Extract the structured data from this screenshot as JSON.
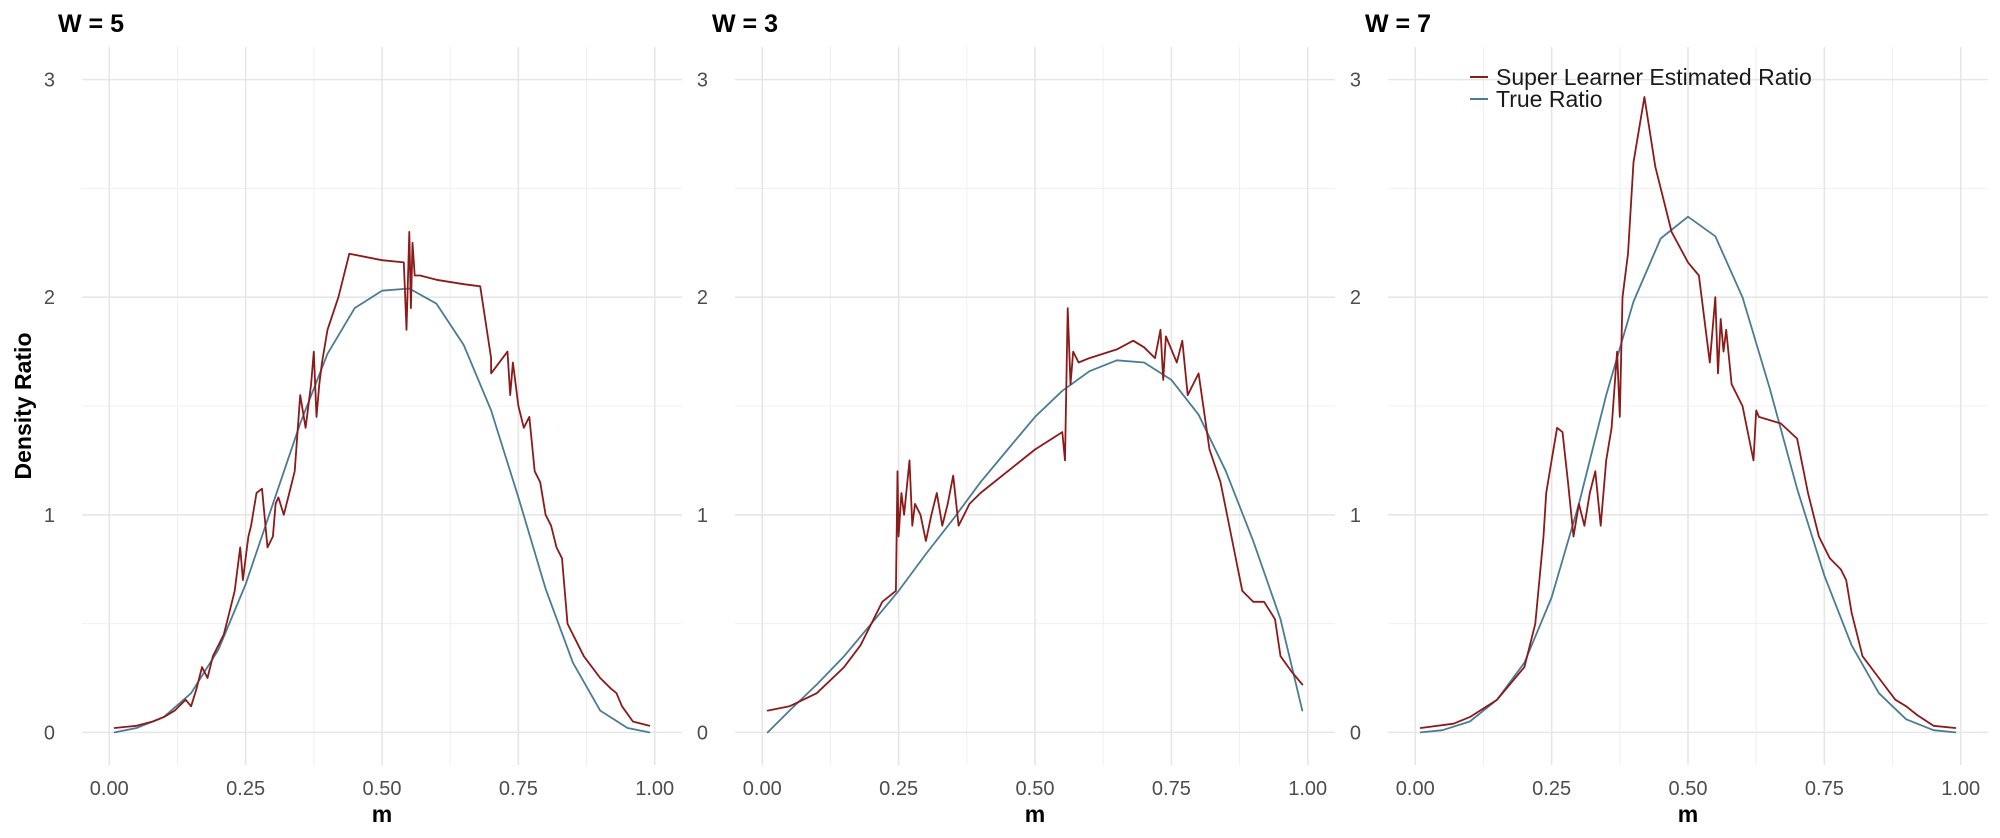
{
  "chart_data": [
    {
      "type": "line",
      "title": "W = 5",
      "xlabel": "m",
      "ylabel": "Density Ratio",
      "xlim": [
        0,
        1
      ],
      "ylim": [
        -0.1,
        3.15
      ],
      "x_ticks": [
        "0.00",
        "0.25",
        "0.50",
        "0.75",
        "1.00"
      ],
      "y_ticks": [
        "0",
        "1",
        "2",
        "3"
      ],
      "grid": true,
      "series": [
        {
          "name": "Super Learner Estimated Ratio",
          "color": "#8b1a1a",
          "x": [
            0.01,
            0.05,
            0.08,
            0.1,
            0.12,
            0.14,
            0.15,
            0.16,
            0.17,
            0.18,
            0.19,
            0.2,
            0.21,
            0.22,
            0.23,
            0.24,
            0.245,
            0.25,
            0.255,
            0.26,
            0.27,
            0.28,
            0.29,
            0.3,
            0.305,
            0.31,
            0.32,
            0.33,
            0.34,
            0.35,
            0.36,
            0.37,
            0.375,
            0.38,
            0.385,
            0.39,
            0.4,
            0.42,
            0.44,
            0.5,
            0.54,
            0.545,
            0.55,
            0.553,
            0.556,
            0.56,
            0.57,
            0.6,
            0.65,
            0.68,
            0.7,
            0.7001,
            0.73,
            0.735,
            0.74,
            0.75,
            0.76,
            0.77,
            0.78,
            0.79,
            0.8,
            0.81,
            0.82,
            0.83,
            0.84,
            0.85,
            0.87,
            0.9,
            0.92,
            0.93,
            0.94,
            0.96,
            0.99
          ],
          "y": [
            0.02,
            0.03,
            0.05,
            0.07,
            0.1,
            0.15,
            0.12,
            0.2,
            0.3,
            0.25,
            0.35,
            0.4,
            0.45,
            0.55,
            0.65,
            0.85,
            0.7,
            0.8,
            0.9,
            0.95,
            1.1,
            1.12,
            0.85,
            0.9,
            1.05,
            1.08,
            1.0,
            1.1,
            1.2,
            1.55,
            1.4,
            1.6,
            1.75,
            1.45,
            1.6,
            1.7,
            1.85,
            2.0,
            2.2,
            2.17,
            2.16,
            1.85,
            2.3,
            1.95,
            2.25,
            2.1,
            2.1,
            2.08,
            2.06,
            2.05,
            1.72,
            1.65,
            1.75,
            1.55,
            1.7,
            1.5,
            1.4,
            1.45,
            1.2,
            1.15,
            1.0,
            0.95,
            0.85,
            0.8,
            0.5,
            0.45,
            0.35,
            0.25,
            0.2,
            0.18,
            0.12,
            0.05,
            0.03
          ]
        },
        {
          "name": "True Ratio",
          "color": "#4a7c96",
          "x": [
            0.01,
            0.05,
            0.1,
            0.15,
            0.2,
            0.25,
            0.3,
            0.35,
            0.4,
            0.45,
            0.5,
            0.55,
            0.6,
            0.65,
            0.7,
            0.75,
            0.8,
            0.85,
            0.9,
            0.95,
            0.99
          ],
          "y": [
            0.0,
            0.02,
            0.07,
            0.18,
            0.38,
            0.68,
            1.05,
            1.42,
            1.74,
            1.95,
            2.03,
            2.04,
            1.97,
            1.78,
            1.48,
            1.08,
            0.66,
            0.32,
            0.1,
            0.02,
            0.0
          ]
        }
      ]
    },
    {
      "type": "line",
      "title": "W = 3",
      "xlabel": "m",
      "xlim": [
        0,
        1
      ],
      "ylim": [
        -0.1,
        3.15
      ],
      "x_ticks": [
        "0.00",
        "0.25",
        "0.50",
        "0.75",
        "1.00"
      ],
      "y_ticks": [
        "0",
        "1",
        "2",
        "3"
      ],
      "grid": true,
      "series": [
        {
          "name": "Super Learner Estimated Ratio",
          "color": "#8b1a1a",
          "x": [
            0.01,
            0.05,
            0.1,
            0.15,
            0.18,
            0.2,
            0.22,
            0.245,
            0.248,
            0.25,
            0.255,
            0.26,
            0.27,
            0.275,
            0.28,
            0.29,
            0.3,
            0.31,
            0.32,
            0.33,
            0.34,
            0.35,
            0.36,
            0.37,
            0.38,
            0.4,
            0.45,
            0.5,
            0.55,
            0.555,
            0.56,
            0.565,
            0.57,
            0.58,
            0.6,
            0.65,
            0.68,
            0.7,
            0.72,
            0.73,
            0.735,
            0.74,
            0.76,
            0.77,
            0.78,
            0.8,
            0.82,
            0.84,
            0.86,
            0.88,
            0.9,
            0.92,
            0.94,
            0.95,
            0.97,
            0.99
          ],
          "y": [
            0.1,
            0.12,
            0.18,
            0.3,
            0.4,
            0.5,
            0.6,
            0.65,
            1.2,
            0.9,
            1.1,
            1.0,
            1.25,
            0.95,
            1.05,
            1.0,
            0.88,
            1.0,
            1.1,
            0.95,
            1.05,
            1.18,
            0.95,
            1.0,
            1.05,
            1.1,
            1.2,
            1.3,
            1.38,
            1.25,
            1.95,
            1.6,
            1.75,
            1.7,
            1.72,
            1.76,
            1.8,
            1.77,
            1.72,
            1.85,
            1.62,
            1.82,
            1.7,
            1.8,
            1.55,
            1.65,
            1.3,
            1.15,
            0.9,
            0.65,
            0.6,
            0.6,
            0.52,
            0.35,
            0.28,
            0.22
          ]
        },
        {
          "name": "True Ratio",
          "color": "#4a7c96",
          "x": [
            0.01,
            0.05,
            0.1,
            0.15,
            0.2,
            0.25,
            0.3,
            0.35,
            0.4,
            0.45,
            0.5,
            0.55,
            0.6,
            0.65,
            0.7,
            0.75,
            0.8,
            0.85,
            0.9,
            0.95,
            0.99
          ],
          "y": [
            0.0,
            0.1,
            0.22,
            0.35,
            0.5,
            0.65,
            0.82,
            0.98,
            1.15,
            1.3,
            1.45,
            1.57,
            1.66,
            1.71,
            1.7,
            1.62,
            1.46,
            1.2,
            0.88,
            0.52,
            0.1
          ]
        }
      ]
    },
    {
      "type": "line",
      "title": "W = 7",
      "xlabel": "m",
      "xlim": [
        0,
        1
      ],
      "ylim": [
        -0.1,
        3.15
      ],
      "x_ticks": [
        "0.00",
        "0.25",
        "0.50",
        "0.75",
        "1.00"
      ],
      "y_ticks": [
        "0",
        "1",
        "2",
        "3"
      ],
      "grid": true,
      "legend": {
        "position": "top-right",
        "entries": [
          "Super Learner Estimated Ratio",
          "True Ratio"
        ]
      },
      "series": [
        {
          "name": "Super Learner Estimated Ratio",
          "color": "#8b1a1a",
          "x": [
            0.01,
            0.07,
            0.1,
            0.15,
            0.2,
            0.22,
            0.235,
            0.24,
            0.25,
            0.26,
            0.27,
            0.28,
            0.29,
            0.3,
            0.31,
            0.32,
            0.33,
            0.34,
            0.35,
            0.36,
            0.37,
            0.375,
            0.38,
            0.39,
            0.4,
            0.42,
            0.44,
            0.47,
            0.5,
            0.52,
            0.54,
            0.55,
            0.555,
            0.56,
            0.565,
            0.57,
            0.58,
            0.6,
            0.62,
            0.625,
            0.63,
            0.67,
            0.7,
            0.72,
            0.74,
            0.76,
            0.78,
            0.79,
            0.8,
            0.81,
            0.82,
            0.85,
            0.88,
            0.9,
            0.92,
            0.95,
            0.99
          ],
          "y": [
            0.02,
            0.04,
            0.07,
            0.15,
            0.3,
            0.5,
            0.9,
            1.1,
            1.25,
            1.4,
            1.38,
            1.15,
            0.9,
            1.05,
            0.95,
            1.1,
            1.2,
            0.95,
            1.25,
            1.4,
            1.75,
            1.45,
            2.0,
            2.2,
            2.62,
            2.92,
            2.6,
            2.3,
            2.16,
            2.1,
            1.7,
            2.0,
            1.65,
            1.9,
            1.75,
            1.85,
            1.6,
            1.5,
            1.25,
            1.48,
            1.45,
            1.42,
            1.35,
            1.1,
            0.9,
            0.8,
            0.75,
            0.7,
            0.55,
            0.45,
            0.35,
            0.25,
            0.15,
            0.12,
            0.08,
            0.03,
            0.02
          ]
        },
        {
          "name": "True Ratio",
          "color": "#4a7c96",
          "x": [
            0.01,
            0.05,
            0.1,
            0.15,
            0.2,
            0.25,
            0.3,
            0.35,
            0.4,
            0.45,
            0.5,
            0.55,
            0.6,
            0.65,
            0.7,
            0.75,
            0.8,
            0.85,
            0.9,
            0.95,
            0.99
          ],
          "y": [
            0.0,
            0.01,
            0.05,
            0.15,
            0.32,
            0.62,
            1.05,
            1.55,
            1.98,
            2.27,
            2.37,
            2.28,
            2.0,
            1.58,
            1.12,
            0.72,
            0.4,
            0.18,
            0.06,
            0.01,
            0.0
          ]
        }
      ]
    }
  ]
}
